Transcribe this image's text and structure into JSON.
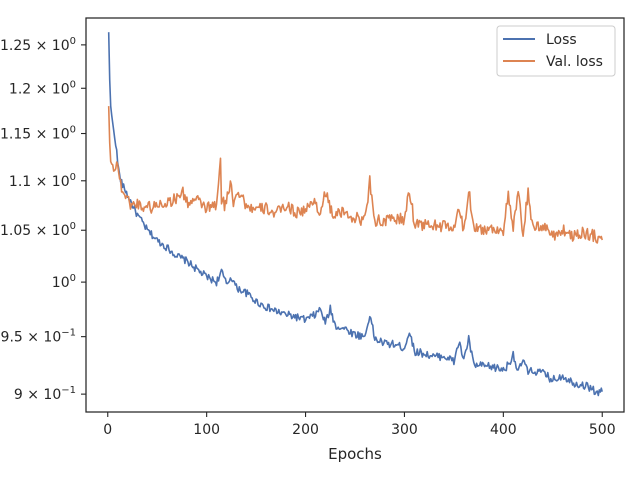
{
  "chart_data": {
    "type": "line",
    "title": "",
    "xlabel": "Epochs",
    "ylabel": "",
    "yscale": "log",
    "xlim": [
      -22,
      522
    ],
    "ylim": [
      0.885,
      1.282
    ],
    "grid": false,
    "legend_position": "top-right",
    "x_ticks": [
      {
        "value": 0,
        "label": "0"
      },
      {
        "value": 100,
        "label": "100"
      },
      {
        "value": 200,
        "label": "200"
      },
      {
        "value": 300,
        "label": "300"
      },
      {
        "value": 400,
        "label": "400"
      },
      {
        "value": 500,
        "label": "500"
      }
    ],
    "y_ticks": [
      {
        "value": 0.9,
        "mantissa": "9",
        "op": " × ",
        "base": "10",
        "exp": "−1"
      },
      {
        "value": 0.95,
        "mantissa": "9.5",
        "op": " × ",
        "base": "10",
        "exp": "−1"
      },
      {
        "value": 1.0,
        "mantissa": "",
        "op": "",
        "base": "10",
        "exp": "0"
      },
      {
        "value": 1.05,
        "mantissa": "1.05",
        "op": " × ",
        "base": "10",
        "exp": "0"
      },
      {
        "value": 1.1,
        "mantissa": "1.1",
        "op": " × ",
        "base": "10",
        "exp": "0"
      },
      {
        "value": 1.15,
        "mantissa": "1.15",
        "op": " × ",
        "base": "10",
        "exp": "0"
      },
      {
        "value": 1.2,
        "mantissa": "1.2",
        "op": " × ",
        "base": "10",
        "exp": "0"
      },
      {
        "value": 1.25,
        "mantissa": "1.25",
        "op": " × ",
        "base": "10",
        "exp": "0"
      }
    ],
    "series": [
      {
        "name": "Loss",
        "color": "#4c72b0",
        "x": [
          1,
          2,
          3,
          5,
          8,
          10,
          12,
          15,
          18,
          20,
          25,
          30,
          35,
          40,
          45,
          50,
          60,
          70,
          80,
          90,
          100,
          110,
          115,
          120,
          125,
          130,
          140,
          150,
          160,
          170,
          180,
          190,
          200,
          210,
          215,
          220,
          225,
          230,
          240,
          250,
          260,
          265,
          270,
          280,
          290,
          300,
          305,
          310,
          320,
          330,
          340,
          350,
          355,
          360,
          365,
          370,
          380,
          390,
          400,
          405,
          410,
          415,
          420,
          425,
          430,
          440,
          450,
          460,
          470,
          480,
          490,
          495,
          500
        ],
        "y": [
          1.265,
          1.21,
          1.18,
          1.16,
          1.14,
          1.12,
          1.105,
          1.095,
          1.09,
          1.085,
          1.075,
          1.065,
          1.058,
          1.05,
          1.045,
          1.04,
          1.033,
          1.025,
          1.02,
          1.012,
          1.005,
          1.0,
          1.01,
          0.998,
          1.005,
          0.995,
          0.99,
          0.982,
          0.977,
          0.973,
          0.97,
          0.968,
          0.965,
          0.97,
          0.975,
          0.962,
          0.975,
          0.96,
          0.957,
          0.952,
          0.95,
          0.97,
          0.948,
          0.944,
          0.943,
          0.94,
          0.955,
          0.937,
          0.935,
          0.932,
          0.933,
          0.928,
          0.945,
          0.93,
          0.948,
          0.925,
          0.924,
          0.923,
          0.921,
          0.925,
          0.935,
          0.918,
          0.93,
          0.918,
          0.92,
          0.918,
          0.912,
          0.916,
          0.91,
          0.908,
          0.905,
          0.9,
          0.903
        ]
      },
      {
        "name": "Val. loss",
        "color": "#dd8452",
        "x": [
          1,
          2,
          3,
          5,
          8,
          10,
          12,
          15,
          18,
          20,
          25,
          30,
          35,
          40,
          45,
          50,
          60,
          70,
          75,
          80,
          90,
          100,
          110,
          114,
          115,
          118,
          120,
          125,
          127,
          130,
          135,
          140,
          150,
          160,
          170,
          180,
          190,
          200,
          210,
          215,
          220,
          225,
          230,
          240,
          250,
          260,
          265,
          270,
          280,
          290,
          300,
          305,
          310,
          320,
          330,
          340,
          350,
          355,
          360,
          365,
          370,
          380,
          390,
          400,
          405,
          410,
          415,
          420,
          425,
          430,
          440,
          450,
          460,
          470,
          480,
          490,
          495,
          500
        ],
        "y": [
          1.18,
          1.14,
          1.12,
          1.115,
          1.115,
          1.12,
          1.1,
          1.09,
          1.085,
          1.08,
          1.075,
          1.077,
          1.073,
          1.075,
          1.072,
          1.076,
          1.078,
          1.082,
          1.09,
          1.078,
          1.08,
          1.072,
          1.075,
          1.118,
          1.082,
          1.075,
          1.08,
          1.1,
          1.076,
          1.09,
          1.085,
          1.075,
          1.07,
          1.072,
          1.066,
          1.075,
          1.068,
          1.07,
          1.08,
          1.065,
          1.09,
          1.07,
          1.065,
          1.068,
          1.062,
          1.06,
          1.1,
          1.06,
          1.058,
          1.062,
          1.06,
          1.09,
          1.058,
          1.055,
          1.055,
          1.054,
          1.052,
          1.07,
          1.05,
          1.09,
          1.055,
          1.05,
          1.052,
          1.05,
          1.085,
          1.05,
          1.088,
          1.045,
          1.09,
          1.05,
          1.055,
          1.045,
          1.05,
          1.045,
          1.048,
          1.045,
          1.043,
          1.045
        ]
      }
    ]
  }
}
